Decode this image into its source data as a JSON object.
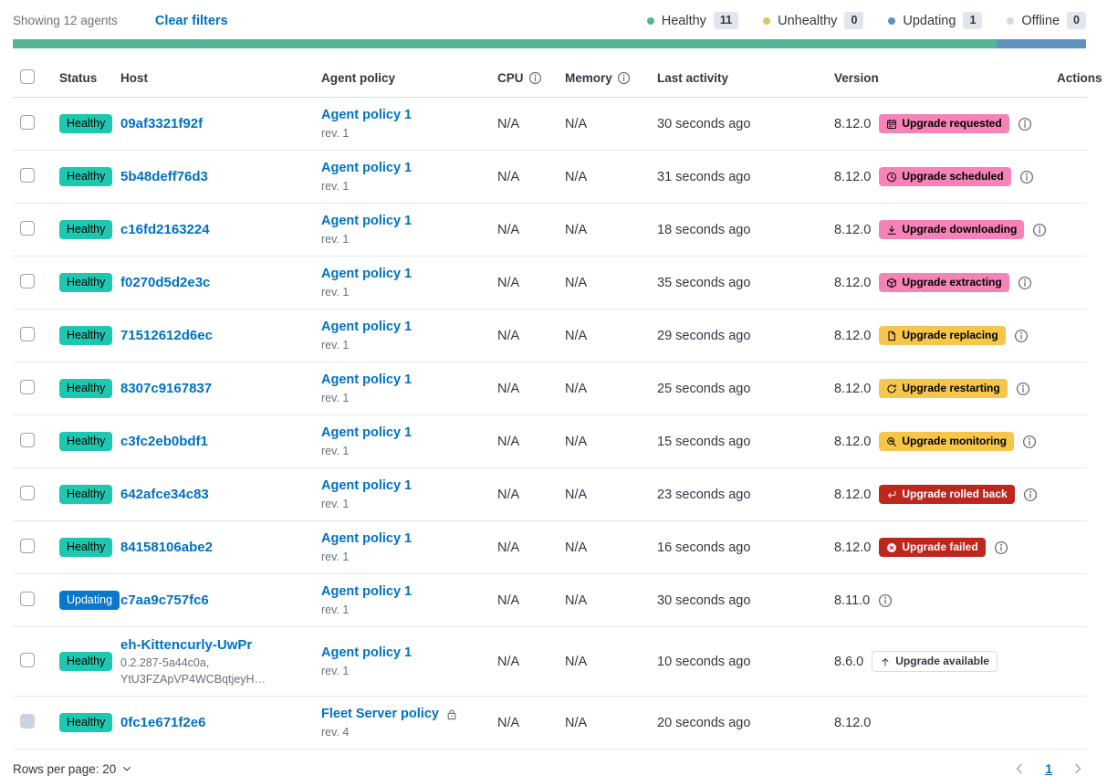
{
  "toolbar": {
    "showing": "Showing 12 agents",
    "clear_filters": "Clear filters"
  },
  "legend": {
    "items": [
      {
        "label": "Healthy",
        "count": "11",
        "color": "#54B399"
      },
      {
        "label": "Unhealthy",
        "count": "0",
        "color": "#DFC45C"
      },
      {
        "label": "Updating",
        "count": "1",
        "color": "#6092C0"
      },
      {
        "label": "Offline",
        "count": "0",
        "color": "#D3DAE6"
      }
    ]
  },
  "health_bar": {
    "segments": [
      {
        "label": "healthy",
        "color": "#54B399",
        "fraction": 0.917
      },
      {
        "label": "updating",
        "color": "#6092C0",
        "fraction": 0.083
      }
    ]
  },
  "colors": {
    "healthy_badge": {
      "bg": "#1EC8B0",
      "text": "#000000"
    },
    "updating_badge": {
      "bg": "#0877CC",
      "text": "#FFFFFF"
    },
    "pink_badge": {
      "bg": "#F583B7",
      "text": "#000000"
    },
    "yellow_badge": {
      "bg": "#F6C64B",
      "text": "#000000"
    },
    "red_badge": {
      "bg": "#BD271E",
      "text": "#FFFFFF"
    },
    "hollow_badge": {
      "bg": "#FFFFFF",
      "text": "#343741",
      "border": "#D3DAE6"
    },
    "link": "#0071C2"
  },
  "table": {
    "columns": [
      {
        "label": "Status"
      },
      {
        "label": "Host"
      },
      {
        "label": "Agent policy"
      },
      {
        "label": "CPU",
        "info": true
      },
      {
        "label": "Memory",
        "info": true
      },
      {
        "label": "Last activity"
      },
      {
        "label": "Version"
      },
      {
        "label": "Actions",
        "align": "right"
      }
    ],
    "rows": [
      {
        "status": "Healthy",
        "status_style": "healthy_badge",
        "host": "09af3321f92f",
        "host_sub": [],
        "policy": "Agent policy 1",
        "policy_rev": "rev. 1",
        "policy_lock": false,
        "cpu": "N/A",
        "memory": "N/A",
        "last_activity": "30 seconds ago",
        "version": "8.12.0",
        "version_info": false,
        "checkbox_disabled": false,
        "upgrade": {
          "label": "Upgrade requested",
          "style": "pink_badge",
          "icon": "calendar-icon",
          "info": true
        }
      },
      {
        "status": "Healthy",
        "status_style": "healthy_badge",
        "host": "5b48deff76d3",
        "host_sub": [],
        "policy": "Agent policy 1",
        "policy_rev": "rev. 1",
        "policy_lock": false,
        "cpu": "N/A",
        "memory": "N/A",
        "last_activity": "31 seconds ago",
        "version": "8.12.0",
        "version_info": false,
        "checkbox_disabled": false,
        "upgrade": {
          "label": "Upgrade scheduled",
          "style": "pink_badge",
          "icon": "clock-icon",
          "info": true
        }
      },
      {
        "status": "Healthy",
        "status_style": "healthy_badge",
        "host": "c16fd2163224",
        "host_sub": [],
        "policy": "Agent policy 1",
        "policy_rev": "rev. 1",
        "policy_lock": false,
        "cpu": "N/A",
        "memory": "N/A",
        "last_activity": "18 seconds ago",
        "version": "8.12.0",
        "version_info": false,
        "checkbox_disabled": false,
        "upgrade": {
          "label": "Upgrade downloading",
          "style": "pink_badge",
          "icon": "download-icon",
          "info": true
        }
      },
      {
        "status": "Healthy",
        "status_style": "healthy_badge",
        "host": "f0270d5d2e3c",
        "host_sub": [],
        "policy": "Agent policy 1",
        "policy_rev": "rev. 1",
        "policy_lock": false,
        "cpu": "N/A",
        "memory": "N/A",
        "last_activity": "35 seconds ago",
        "version": "8.12.0",
        "version_info": false,
        "checkbox_disabled": false,
        "upgrade": {
          "label": "Upgrade extracting",
          "style": "pink_badge",
          "icon": "package-icon",
          "info": true
        }
      },
      {
        "status": "Healthy",
        "status_style": "healthy_badge",
        "host": "71512612d6ec",
        "host_sub": [],
        "policy": "Agent policy 1",
        "policy_rev": "rev. 1",
        "policy_lock": false,
        "cpu": "N/A",
        "memory": "N/A",
        "last_activity": "29 seconds ago",
        "version": "8.12.0",
        "version_info": false,
        "checkbox_disabled": false,
        "upgrade": {
          "label": "Upgrade replacing",
          "style": "yellow_badge",
          "icon": "document-icon",
          "info": true
        }
      },
      {
        "status": "Healthy",
        "status_style": "healthy_badge",
        "host": "8307c9167837",
        "host_sub": [],
        "policy": "Agent policy 1",
        "policy_rev": "rev. 1",
        "policy_lock": false,
        "cpu": "N/A",
        "memory": "N/A",
        "last_activity": "25 seconds ago",
        "version": "8.12.0",
        "version_info": false,
        "checkbox_disabled": false,
        "upgrade": {
          "label": "Upgrade restarting",
          "style": "yellow_badge",
          "icon": "refresh-icon",
          "info": true
        }
      },
      {
        "status": "Healthy",
        "status_style": "healthy_badge",
        "host": "c3fc2eb0bdf1",
        "host_sub": [],
        "policy": "Agent policy 1",
        "policy_rev": "rev. 1",
        "policy_lock": false,
        "cpu": "N/A",
        "memory": "N/A",
        "last_activity": "15 seconds ago",
        "version": "8.12.0",
        "version_info": false,
        "checkbox_disabled": false,
        "upgrade": {
          "label": "Upgrade monitoring",
          "style": "yellow_badge",
          "icon": "inspect-icon",
          "info": true
        }
      },
      {
        "status": "Healthy",
        "status_style": "healthy_badge",
        "host": "642afce34c83",
        "host_sub": [],
        "policy": "Agent policy 1",
        "policy_rev": "rev. 1",
        "policy_lock": false,
        "cpu": "N/A",
        "memory": "N/A",
        "last_activity": "23 seconds ago",
        "version": "8.12.0",
        "version_info": false,
        "checkbox_disabled": false,
        "upgrade": {
          "label": "Upgrade rolled back",
          "style": "red_badge",
          "icon": "return-icon",
          "info": true
        }
      },
      {
        "status": "Healthy",
        "status_style": "healthy_badge",
        "host": "84158106abe2",
        "host_sub": [],
        "policy": "Agent policy 1",
        "policy_rev": "rev. 1",
        "policy_lock": false,
        "cpu": "N/A",
        "memory": "N/A",
        "last_activity": "16 seconds ago",
        "version": "8.12.0",
        "version_info": false,
        "checkbox_disabled": false,
        "upgrade": {
          "label": "Upgrade failed",
          "style": "red_badge",
          "icon": "error-icon",
          "info": true
        }
      },
      {
        "status": "Updating",
        "status_style": "updating_badge",
        "host": "c7aa9c757fc6",
        "host_sub": [],
        "policy": "Agent policy 1",
        "policy_rev": "rev. 1",
        "policy_lock": false,
        "cpu": "N/A",
        "memory": "N/A",
        "last_activity": "30 seconds ago",
        "version": "8.11.0",
        "version_info": true,
        "checkbox_disabled": false,
        "upgrade": null
      },
      {
        "status": "Healthy",
        "status_style": "healthy_badge",
        "host": "eh-Kittencurly-UwPr",
        "host_sub": [
          "0.2.287-5a44c0a,",
          "YtU3FZApVP4WCBqtjeyH…"
        ],
        "policy": "Agent policy 1",
        "policy_rev": "rev. 1",
        "policy_lock": false,
        "cpu": "N/A",
        "memory": "N/A",
        "last_activity": "10 seconds ago",
        "version": "8.6.0",
        "version_info": false,
        "checkbox_disabled": false,
        "upgrade": {
          "label": "Upgrade available",
          "style": "hollow_badge",
          "icon": "arrow-up-icon",
          "info": false
        }
      },
      {
        "status": "Healthy",
        "status_style": "healthy_badge",
        "host": "0fc1e671f2e6",
        "host_sub": [],
        "policy": "Fleet Server policy",
        "policy_rev": "rev. 4",
        "policy_lock": true,
        "cpu": "N/A",
        "memory": "N/A",
        "last_activity": "20 seconds ago",
        "version": "8.12.0",
        "version_info": false,
        "checkbox_disabled": true,
        "upgrade": null
      }
    ]
  },
  "footer": {
    "rows_per_page": "Rows per page: 20",
    "page": "1"
  }
}
